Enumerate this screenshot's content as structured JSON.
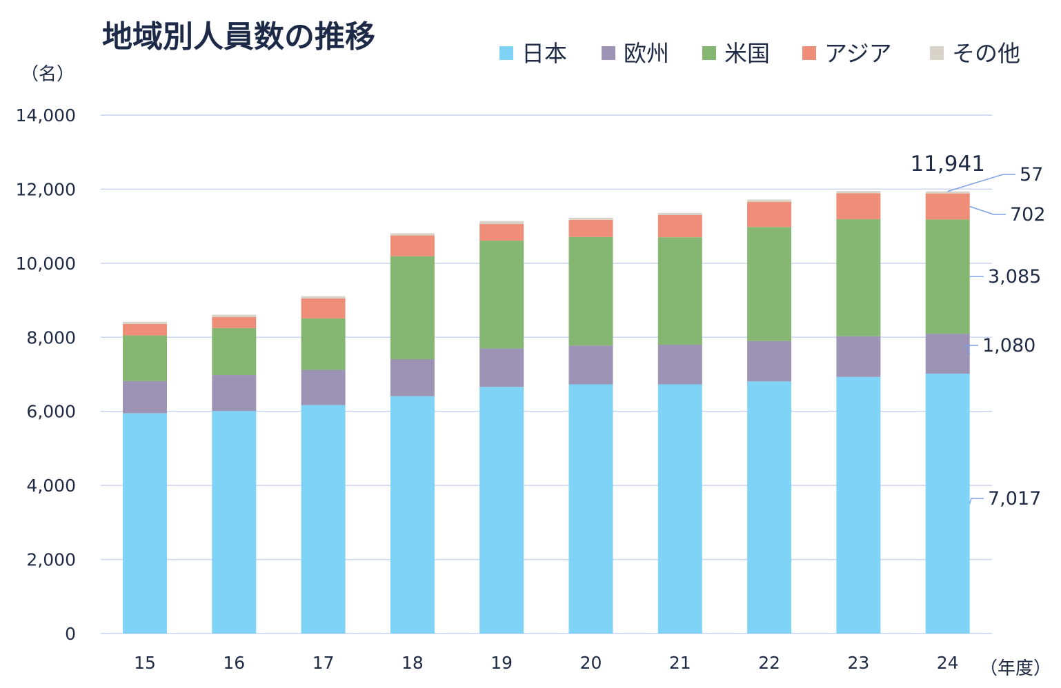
{
  "chart_data": {
    "type": "bar",
    "stacked": true,
    "title": "地域別人員数の推移",
    "y_unit_label": "（名）",
    "x_unit_label": "（年度）",
    "categories": [
      "15",
      "16",
      "17",
      "18",
      "19",
      "20",
      "21",
      "22",
      "23",
      "24"
    ],
    "ylim": [
      0,
      14000
    ],
    "y_ticks": [
      0,
      2000,
      4000,
      6000,
      8000,
      10000,
      12000,
      14000
    ],
    "y_tick_labels": [
      "0",
      "2,000",
      "4,000",
      "6,000",
      "8,000",
      "10,000",
      "12,000",
      "14,000"
    ],
    "grid": true,
    "legend_position": "top-right",
    "series": [
      {
        "name": "日本",
        "color": "#7fd3f7",
        "values": [
          5950,
          6010,
          6170,
          6410,
          6660,
          6730,
          6730,
          6810,
          6930,
          7017
        ]
      },
      {
        "name": "欧州",
        "color": "#9d93b4",
        "values": [
          870,
          970,
          950,
          1000,
          1040,
          1050,
          1070,
          1090,
          1100,
          1080
        ]
      },
      {
        "name": "米国",
        "color": "#86b772",
        "values": [
          1230,
          1270,
          1390,
          2780,
          2910,
          2930,
          2900,
          3080,
          3160,
          3085
        ]
      },
      {
        "name": "アジア",
        "color": "#ee8e78",
        "values": [
          310,
          300,
          540,
          560,
          450,
          460,
          600,
          680,
          700,
          702
        ]
      },
      {
        "name": "その他",
        "color": "#d8d3c8",
        "values": [
          60,
          60,
          60,
          60,
          80,
          60,
          60,
          60,
          60,
          57
        ]
      }
    ],
    "annotations": {
      "last_total": "11,941",
      "last_segment_labels": [
        "7,017",
        "1,080",
        "3,085",
        "702",
        "57"
      ]
    }
  }
}
